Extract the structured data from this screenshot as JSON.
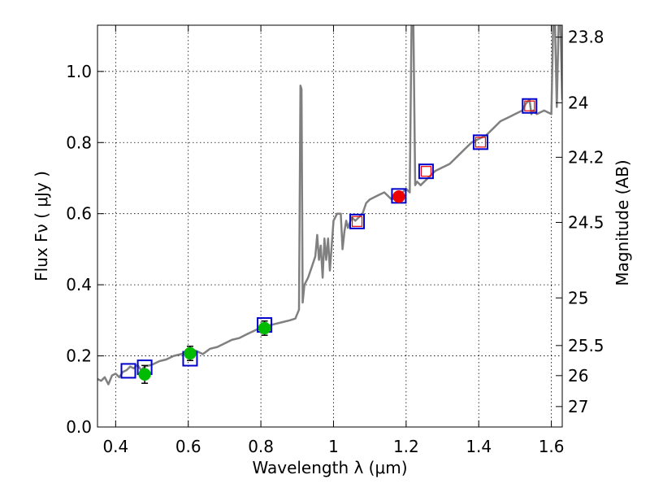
{
  "chart_data": {
    "type": "line",
    "xlabel": "Wavelength  λ (μm)",
    "ylabel": "Flux  Fν  ( μJy )",
    "y2label": "Magnitude (AB)",
    "xlim": [
      0.35,
      1.63
    ],
    "ylim": [
      0.0,
      1.13
    ],
    "grid": true,
    "x_ticks": [
      {
        "value": 0.4,
        "label": "0.4"
      },
      {
        "value": 0.6,
        "label": "0.6"
      },
      {
        "value": 0.8,
        "label": "0.8"
      },
      {
        "value": 1.0,
        "label": "1"
      },
      {
        "value": 1.2,
        "label": "1.2"
      },
      {
        "value": 1.4,
        "label": "1.4"
      },
      {
        "value": 1.6,
        "label": "1.6"
      }
    ],
    "y_ticks": [
      {
        "value": 0.0,
        "label": "0.0"
      },
      {
        "value": 0.2,
        "label": "0.2"
      },
      {
        "value": 0.4,
        "label": "0.4"
      },
      {
        "value": 0.6,
        "label": "0.6"
      },
      {
        "value": 0.8,
        "label": "0.8"
      },
      {
        "value": 1.0,
        "label": "1.0"
      }
    ],
    "mag_ticks": [
      {
        "flux": 1.0965,
        "label": "23.8"
      },
      {
        "flux": 0.912,
        "label": "24"
      },
      {
        "flux": 0.7586,
        "label": "24.2"
      },
      {
        "flux": 0.5754,
        "label": "24.5"
      },
      {
        "flux": 0.3631,
        "label": "25"
      },
      {
        "flux": 0.2291,
        "label": "25.5"
      },
      {
        "flux": 0.1445,
        "label": "26"
      },
      {
        "flux": 0.0575,
        "label": "27"
      }
    ],
    "model_spectrum": {
      "color": "#808080",
      "x": [
        0.35,
        0.36,
        0.37,
        0.38,
        0.39,
        0.4,
        0.41,
        0.42,
        0.43,
        0.44,
        0.45,
        0.46,
        0.47,
        0.48,
        0.5,
        0.52,
        0.54,
        0.56,
        0.58,
        0.6,
        0.62,
        0.64,
        0.66,
        0.68,
        0.7,
        0.72,
        0.74,
        0.76,
        0.78,
        0.8,
        0.82,
        0.84,
        0.86,
        0.88,
        0.895,
        0.905,
        0.909,
        0.912,
        0.915,
        0.92,
        0.93,
        0.94,
        0.95,
        0.955,
        0.96,
        0.965,
        0.97,
        0.975,
        0.98,
        0.985,
        0.99,
        1.0,
        1.01,
        1.02,
        1.025,
        1.03,
        1.035,
        1.04,
        1.05,
        1.06,
        1.07,
        1.08,
        1.09,
        1.1,
        1.12,
        1.14,
        1.16,
        1.18,
        1.19,
        1.2,
        1.21,
        1.215,
        1.22,
        1.225,
        1.23,
        1.24,
        1.26,
        1.28,
        1.3,
        1.32,
        1.34,
        1.36,
        1.38,
        1.4,
        1.42,
        1.44,
        1.46,
        1.48,
        1.5,
        1.52,
        1.53,
        1.54,
        1.545,
        1.55,
        1.56,
        1.58,
        1.6,
        1.605,
        1.61,
        1.615,
        1.62,
        1.625,
        1.63
      ],
      "y": [
        0.135,
        0.13,
        0.14,
        0.12,
        0.145,
        0.15,
        0.14,
        0.155,
        0.16,
        0.17,
        0.165,
        0.175,
        0.16,
        0.17,
        0.175,
        0.185,
        0.19,
        0.2,
        0.205,
        0.21,
        0.215,
        0.205,
        0.22,
        0.225,
        0.235,
        0.245,
        0.25,
        0.26,
        0.27,
        0.28,
        0.285,
        0.29,
        0.295,
        0.3,
        0.305,
        0.33,
        0.96,
        0.95,
        0.35,
        0.4,
        0.42,
        0.45,
        0.48,
        0.54,
        0.47,
        0.51,
        0.42,
        0.53,
        0.47,
        0.53,
        0.44,
        0.58,
        0.6,
        0.6,
        0.5,
        0.55,
        0.58,
        0.56,
        0.59,
        0.58,
        0.59,
        0.6,
        0.63,
        0.64,
        0.65,
        0.66,
        0.64,
        0.65,
        0.66,
        0.67,
        0.66,
        1.13,
        1.13,
        0.68,
        0.69,
        0.68,
        0.7,
        0.72,
        0.73,
        0.74,
        0.76,
        0.78,
        0.8,
        0.81,
        0.82,
        0.84,
        0.86,
        0.87,
        0.88,
        0.89,
        0.91,
        0.92,
        0.88,
        0.89,
        0.88,
        0.89,
        0.88,
        1.13,
        1.13,
        0.9,
        1.13,
        1.13,
        0.92
      ]
    },
    "model_points": {
      "marker": "open-square",
      "color": "#0000cc",
      "x": [
        0.435,
        0.48,
        0.605,
        0.81,
        1.065,
        1.18,
        1.255,
        1.405,
        1.54
      ],
      "y": [
        0.158,
        0.168,
        0.192,
        0.287,
        0.578,
        0.65,
        0.719,
        0.801,
        0.903
      ]
    },
    "observed_optical": {
      "marker": "filled-circle",
      "color": "#00bb00",
      "x": [
        0.48,
        0.605,
        0.81
      ],
      "y": [
        0.148,
        0.207,
        0.278
      ],
      "yerr": [
        0.025,
        0.02,
        0.02
      ]
    },
    "observed_nir_detection": {
      "marker": "filled-circle",
      "color": "#ee0000",
      "x": [
        1.18
      ],
      "y": [
        0.648
      ],
      "yerr": [
        0.012
      ]
    },
    "observed_nir_upper": {
      "marker": "small-open-square",
      "color": "#ee0000",
      "x": [
        1.065,
        1.255,
        1.405,
        1.54
      ],
      "y": [
        0.578,
        0.719,
        0.801,
        0.903
      ]
    }
  }
}
